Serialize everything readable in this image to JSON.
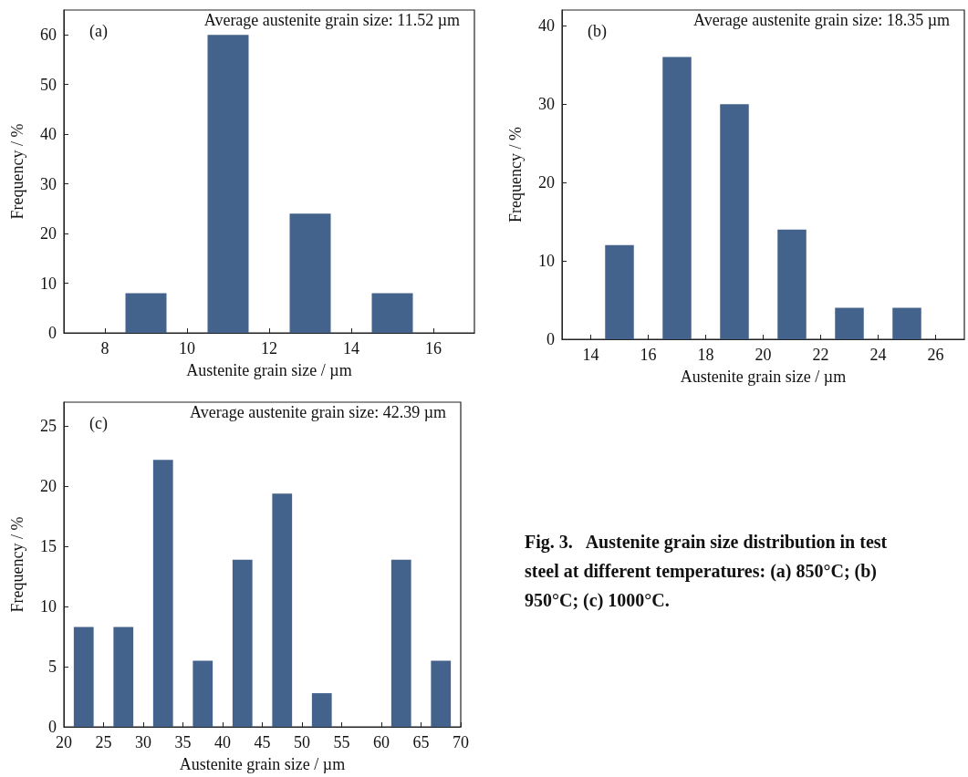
{
  "chart_data": [
    {
      "type": "bar",
      "x": [
        9,
        11,
        13,
        15
      ],
      "values": [
        8,
        60,
        24,
        8
      ],
      "color": "#44638c",
      "xlabel": "Austenite grain size / µm",
      "ylabel": "Frequency / %",
      "xlim": [
        7,
        17
      ],
      "xticks": [
        8,
        10,
        12,
        14,
        16
      ],
      "ylim": [
        0,
        65
      ],
      "yticks": [
        0,
        10,
        20,
        30,
        40,
        50,
        60
      ],
      "annotations": [
        "(a)",
        "Average austenite grain size: 11.52 µm"
      ]
    },
    {
      "type": "bar",
      "x": [
        15,
        17,
        19,
        21,
        23,
        25
      ],
      "values": [
        12,
        36,
        30,
        14,
        4,
        4
      ],
      "color": "#44638c",
      "xlabel": "Austenite grain size / µm",
      "ylabel": "Frequency / %",
      "xlim": [
        13,
        27
      ],
      "xticks": [
        14,
        16,
        18,
        20,
        22,
        24,
        26
      ],
      "ylim": [
        0,
        42
      ],
      "yticks": [
        0,
        10,
        20,
        30,
        40
      ],
      "annotations": [
        "(b)",
        "Average austenite grain size: 18.35 µm"
      ]
    },
    {
      "type": "bar",
      "x": [
        22.5,
        27.5,
        32.5,
        37.5,
        42.5,
        47.5,
        52.5,
        57.5,
        62.5,
        67.5
      ],
      "values": [
        8.3,
        8.3,
        22.2,
        5.5,
        13.9,
        19.4,
        2.8,
        0,
        13.9,
        5.5
      ],
      "color": "#44638c",
      "xlabel": "Austenite grain size / µm",
      "ylabel": "Frequency / %",
      "xlim": [
        20,
        70
      ],
      "xticks": [
        20,
        25,
        30,
        35,
        40,
        45,
        50,
        55,
        60,
        65,
        70
      ],
      "ylim": [
        0,
        27
      ],
      "yticks": [
        0,
        5,
        10,
        15,
        20,
        25
      ],
      "annotations": [
        "(c)",
        "Average austenite grain size: 42.39 µm",
        "Fig. 3.   Austenite grain size distribution in test steel at different temperatures: (a) 850°C; (b) 950°C; (c) 1000°C."
      ]
    }
  ]
}
